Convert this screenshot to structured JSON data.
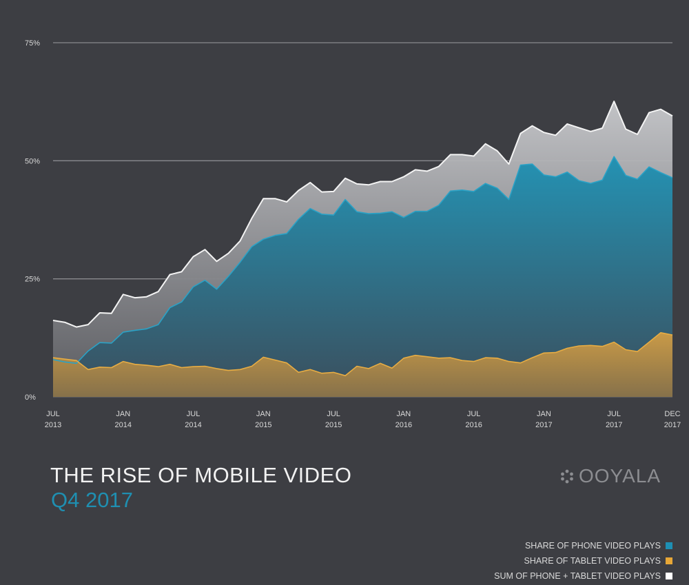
{
  "chart_data": {
    "type": "area",
    "title": "THE RISE OF MOBILE VIDEO",
    "subtitle": "Q4 2017",
    "ylim": [
      0,
      75
    ],
    "yticks": [
      "75%",
      "50%",
      "25%",
      "0%"
    ],
    "ytick_values": [
      75,
      50,
      25,
      0
    ],
    "xtick_labels": [
      [
        "JUL",
        "2013"
      ],
      [
        "JAN",
        "2014"
      ],
      [
        "JUL",
        "2014"
      ],
      [
        "JAN",
        "2015"
      ],
      [
        "JUL",
        "2015"
      ],
      [
        "JAN",
        "2016"
      ],
      [
        "JUL",
        "2016"
      ],
      [
        "JAN",
        "2017"
      ],
      [
        "JUL",
        "2017"
      ],
      [
        "DEC",
        "2017"
      ]
    ],
    "grid": true,
    "x": [
      "2013-07",
      "2013-08",
      "2013-09",
      "2013-10",
      "2013-11",
      "2013-12",
      "2014-01",
      "2014-02",
      "2014-03",
      "2014-04",
      "2014-05",
      "2014-06",
      "2014-07",
      "2014-08",
      "2014-09",
      "2014-10",
      "2014-11",
      "2014-12",
      "2015-01",
      "2015-02",
      "2015-03",
      "2015-04",
      "2015-05",
      "2015-06",
      "2015-07",
      "2015-08",
      "2015-09",
      "2015-10",
      "2015-11",
      "2015-12",
      "2016-01",
      "2016-02",
      "2016-03",
      "2016-04",
      "2016-05",
      "2016-06",
      "2016-07",
      "2016-08",
      "2016-09",
      "2016-10",
      "2016-11",
      "2016-12",
      "2017-01",
      "2017-02",
      "2017-03",
      "2017-04",
      "2017-05",
      "2017-06",
      "2017-07",
      "2017-08",
      "2017-09",
      "2017-10",
      "2017-11",
      "2017-12"
    ],
    "series": [
      {
        "name": "SUM OF PHONE + TABLET VIDEO PLAYS",
        "color": "#ffffff",
        "values": [
          16.2,
          15.8,
          14.8,
          15.3,
          17.8,
          17.7,
          21.7,
          21.0,
          21.2,
          22.3,
          25.9,
          26.5,
          29.7,
          31.2,
          28.7,
          30.4,
          33.0,
          37.8,
          42.0,
          42.0,
          41.3,
          43.7,
          45.4,
          43.4,
          43.5,
          46.3,
          45.1,
          44.9,
          45.6,
          45.6,
          46.6,
          48.1,
          47.8,
          48.8,
          51.3,
          51.3,
          51.0,
          53.6,
          52.1,
          49.3,
          55.8,
          57.4,
          56.0,
          55.4,
          57.8,
          57.0,
          56.2,
          56.9,
          62.6,
          56.7,
          55.6,
          60.2,
          60.9,
          59.5
        ]
      },
      {
        "name": "SHARE OF PHONE VIDEO PLAYS",
        "color": "#1e8fb3",
        "values": [
          7.9,
          7.4,
          7.1,
          9.7,
          11.5,
          11.4,
          13.7,
          14.1,
          14.4,
          15.3,
          18.9,
          20.1,
          23.3,
          24.7,
          22.8,
          25.5,
          28.5,
          31.8,
          33.4,
          34.2,
          34.6,
          37.6,
          39.9,
          38.7,
          38.5,
          41.8,
          39.2,
          38.8,
          38.9,
          39.2,
          38.0,
          39.3,
          39.3,
          40.6,
          43.6,
          43.8,
          43.5,
          45.2,
          44.2,
          41.8,
          49.1,
          49.3,
          47.0,
          46.6,
          47.6,
          45.8,
          45.2,
          45.9,
          50.9,
          46.9,
          46.1,
          48.7,
          47.5,
          46.4
        ]
      },
      {
        "name": "SHARE OF TABLET VIDEO PLAYS",
        "color": "#e7a737",
        "values": [
          8.3,
          8.0,
          7.7,
          5.8,
          6.3,
          6.2,
          7.5,
          6.9,
          6.7,
          6.4,
          6.9,
          6.2,
          6.4,
          6.5,
          6.0,
          5.6,
          5.8,
          6.5,
          8.4,
          7.8,
          7.2,
          5.2,
          5.8,
          5.0,
          5.2,
          4.5,
          6.5,
          6.0,
          7.1,
          6.1,
          8.2,
          8.8,
          8.5,
          8.2,
          8.3,
          7.7,
          7.5,
          8.3,
          8.2,
          7.5,
          7.2,
          8.3,
          9.3,
          9.4,
          10.3,
          10.8,
          10.9,
          10.7,
          11.6,
          10.0,
          9.6,
          11.6,
          13.6,
          13.1
        ]
      }
    ],
    "legend": {
      "placement": "bottom-right",
      "items": [
        {
          "label": "SHARE OF PHONE VIDEO PLAYS",
          "color": "#1e8fb3"
        },
        {
          "label": "SHARE OF TABLET VIDEO PLAYS",
          "color": "#e7a737"
        },
        {
          "label": "SUM OF PHONE + TABLET VIDEO PLAYS",
          "color": "#ffffff"
        }
      ]
    }
  },
  "brand": {
    "name": "OOYALA",
    "logo_icon": "dot-cluster-icon"
  }
}
